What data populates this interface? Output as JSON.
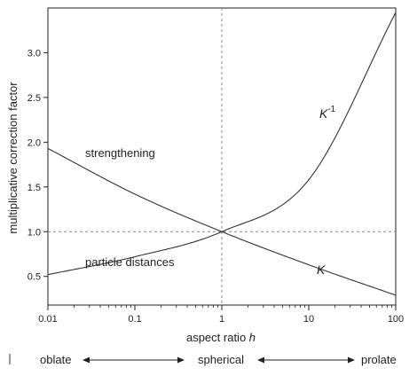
{
  "chart_data": {
    "type": "line",
    "title": "",
    "xlabel": "aspect ratio",
    "xlabel_var": "h",
    "ylabel": "multiplicative correction factor",
    "xscale": "log",
    "xlim": [
      0.01,
      100
    ],
    "ylim": [
      0.18,
      3.5
    ],
    "xticks": [
      0.01,
      0.1,
      1,
      10,
      100
    ],
    "xtick_labels": [
      "0.01",
      "0.1",
      "1",
      "10",
      "100"
    ],
    "yticks": [
      0.5,
      1.0,
      1.5,
      2.0,
      2.5,
      3.0
    ],
    "ytick_labels": [
      "0.5",
      "1.0",
      "1.5",
      "2.0",
      "2.5",
      "3.0"
    ],
    "grid": false,
    "reference_lines": [
      {
        "axis": "y",
        "value": 1.0,
        "style": "dashed"
      },
      {
        "axis": "x",
        "value": 1,
        "style": "dashed"
      }
    ],
    "series": [
      {
        "name": "K",
        "x": [
          0.01,
          0.1,
          1,
          10,
          100
        ],
        "y": [
          1.93,
          1.42,
          1.0,
          0.63,
          0.29
        ]
      },
      {
        "name": "K",
        "x": [
          0.01,
          0.1,
          1,
          10,
          100
        ],
        "y": [
          0.52,
          0.72,
          1.0,
          1.58,
          3.45
        ]
      }
    ],
    "annotations": {
      "strengthening": "strengthening",
      "particle_distances": "particle distances",
      "k_inverse": "K",
      "k_inverse_exp": "-1",
      "k": "K"
    }
  },
  "scale_labels": {
    "oblate": "oblate",
    "spherical": "spherical",
    "prolate": "prolate"
  }
}
